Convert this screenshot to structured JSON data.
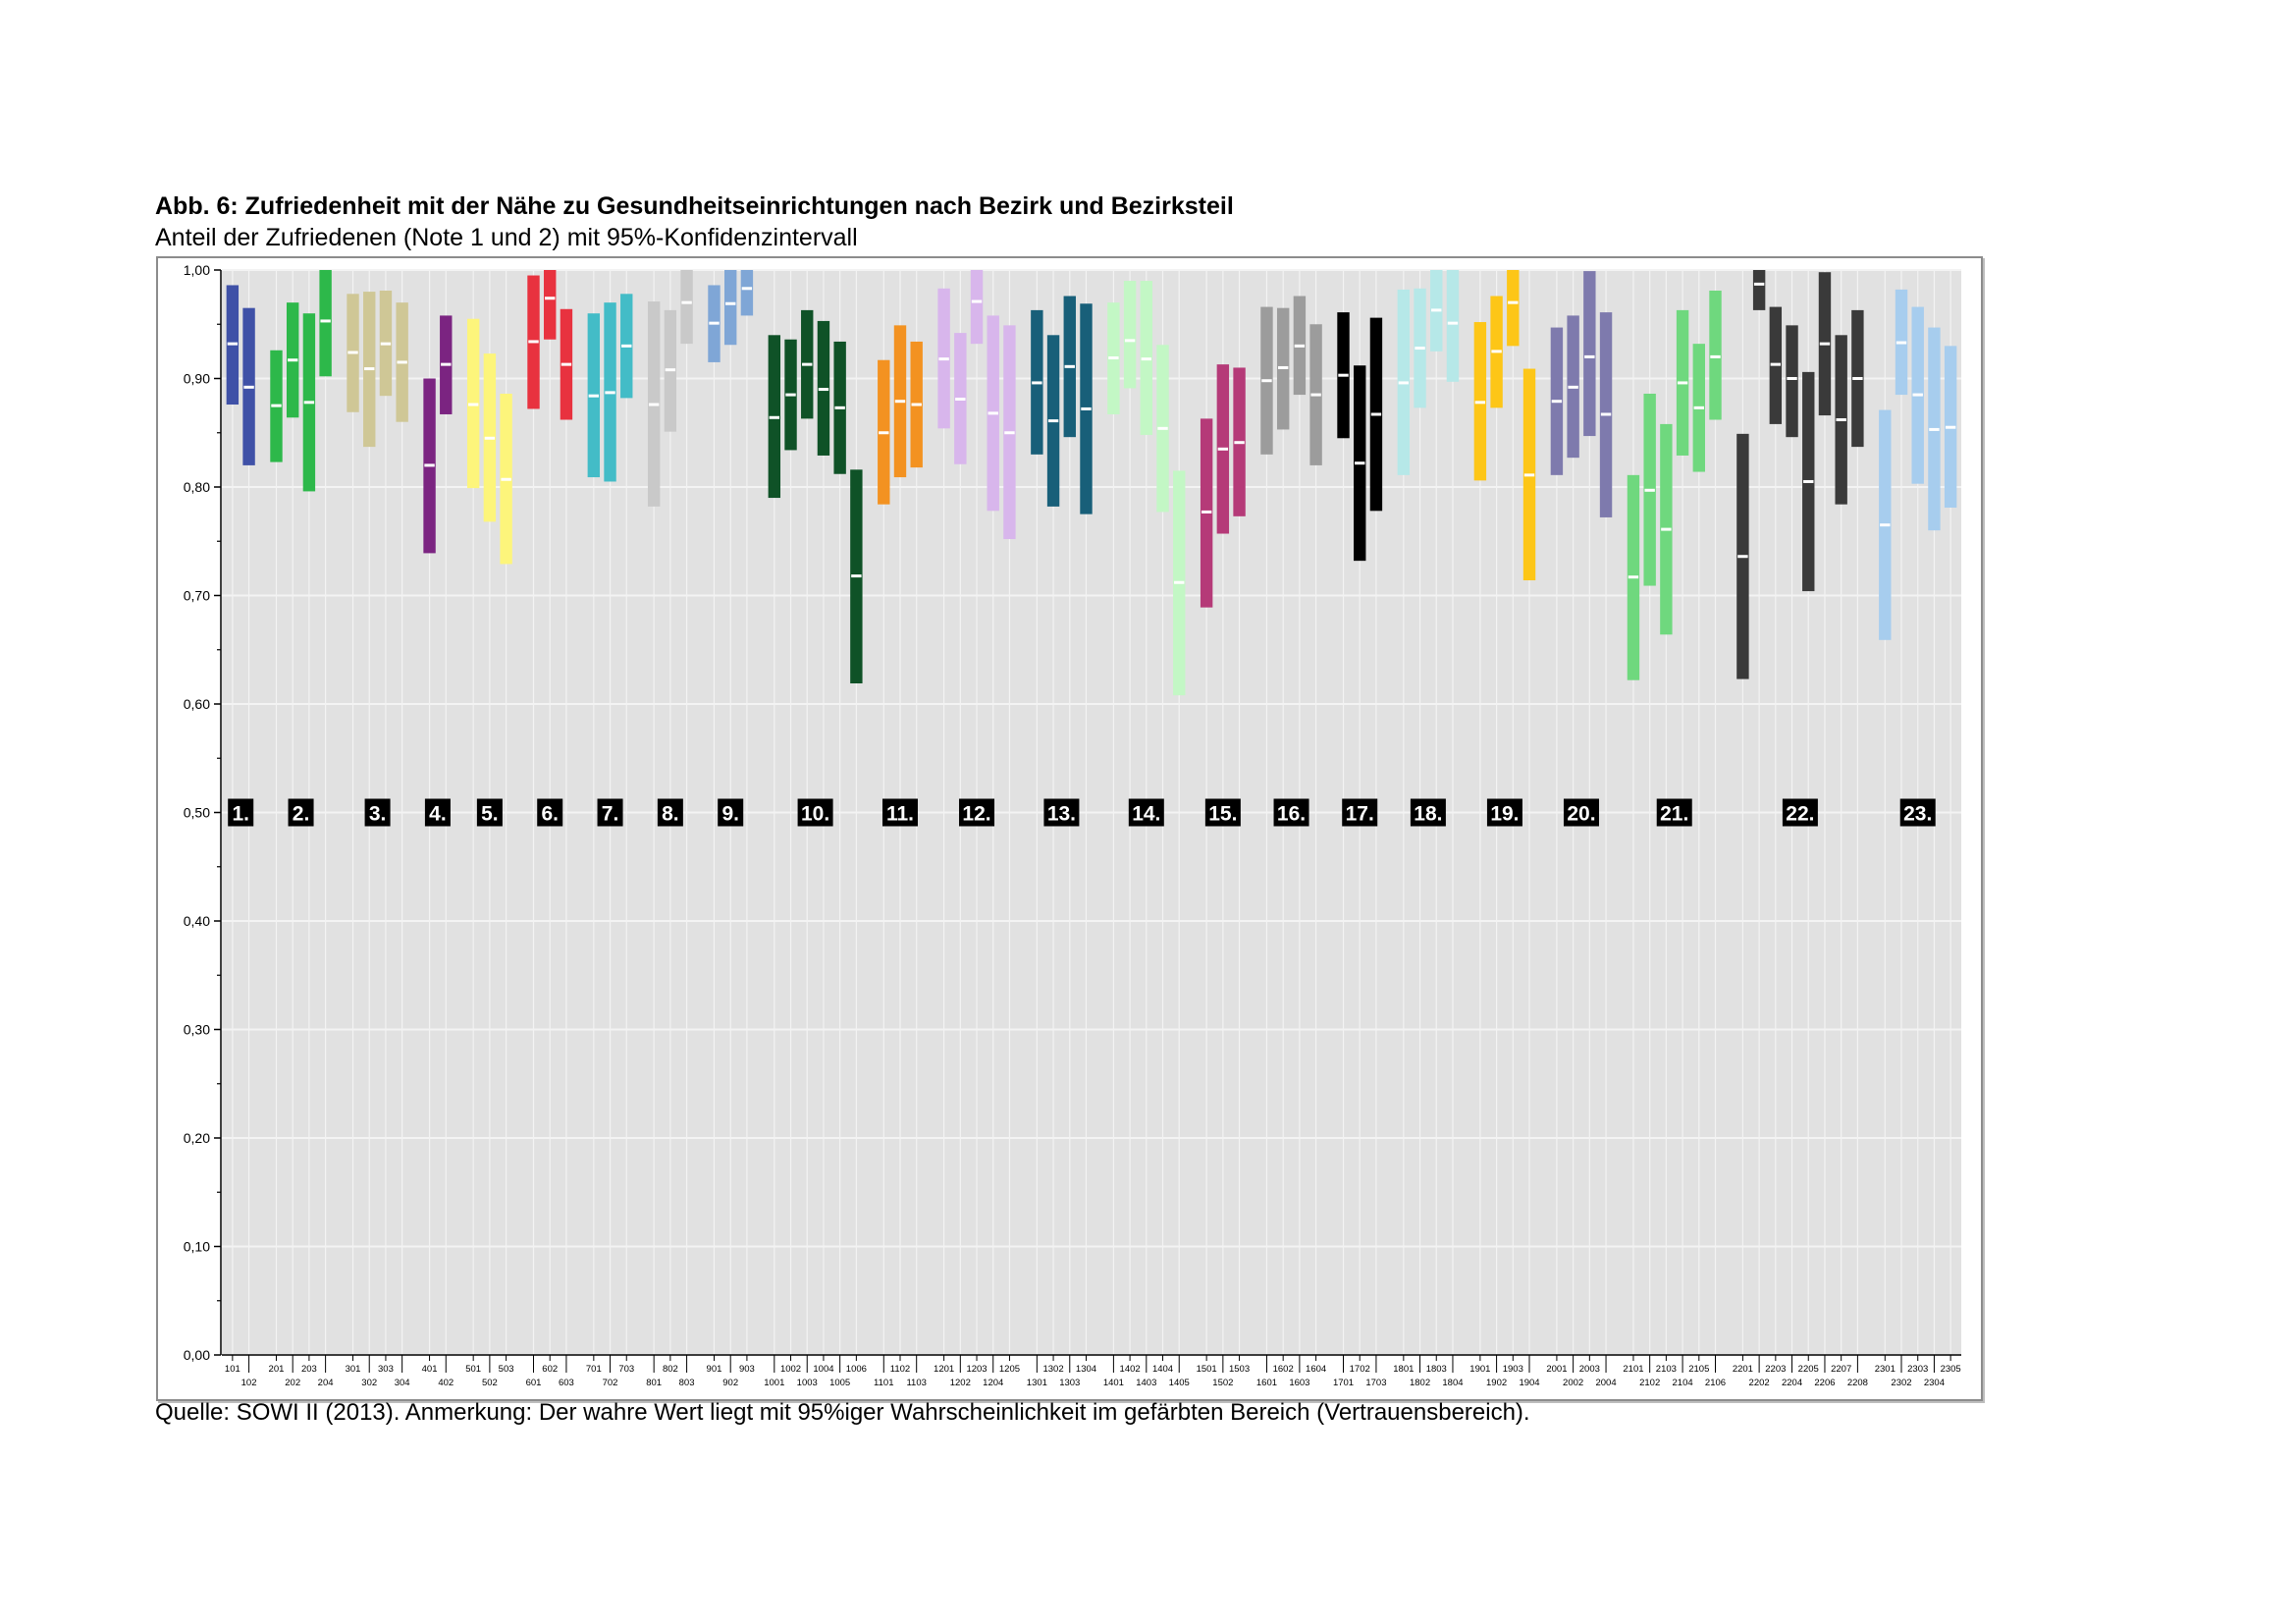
{
  "header": {
    "title": "Abb. 6: Zufriedenheit mit der Nähe zu Gesundheitseinrichtungen nach Bezirk und Bezirksteil",
    "subtitle": "Anteil der Zufriedenen (Note 1 und 2) mit 95%-Konfidenzintervall"
  },
  "footer": {
    "source": "Quelle: SOWI II (2013). Anmerkung: Der wahre Wert liegt mit 95%iger Wahrscheinlichkeit im gefärbten Bereich (Vertrauensbereich)."
  },
  "chart_data": {
    "type": "range-bar",
    "ylim": [
      0,
      1
    ],
    "grid": true,
    "y_ticks": [
      "0,00",
      "0,10",
      "0,20",
      "0,30",
      "0,40",
      "0,50",
      "0,60",
      "0,70",
      "0,80",
      "0,90",
      "1,00"
    ],
    "x_labels": [
      "101",
      "102",
      "201",
      "202",
      "203",
      "204",
      "301",
      "302",
      "303",
      "304",
      "401",
      "402",
      "501",
      "502",
      "503",
      "601",
      "602",
      "603",
      "701",
      "702",
      "703",
      "801",
      "802",
      "803",
      "901",
      "902",
      "903",
      "1001",
      "1002",
      "1003",
      "1004",
      "1005",
      "1006",
      "1101",
      "1102",
      "1103",
      "1201",
      "1202",
      "1203",
      "1204",
      "1205",
      "1301",
      "1302",
      "1303",
      "1304",
      "1401",
      "1402",
      "1403",
      "1404",
      "1405",
      "1501",
      "1502",
      "1503",
      "1601",
      "1602",
      "1603",
      "1604",
      "1701",
      "1702",
      "1703",
      "1801",
      "1802",
      "1803",
      "1804",
      "1901",
      "1902",
      "1903",
      "1904",
      "2001",
      "2002",
      "2003",
      "2004",
      "2101",
      "2102",
      "2103",
      "2104",
      "2105",
      "2106",
      "2201",
      "2202",
      "2203",
      "2204",
      "2205",
      "2206",
      "2207",
      "2208",
      "2301",
      "2302",
      "2303",
      "2304",
      "2305"
    ],
    "districts": [
      {
        "label": "1.",
        "color": "#3f51a7",
        "sub": [
          {
            "id": "101",
            "low": 0.876,
            "mid": 0.932,
            "high": 0.986
          },
          {
            "id": "102",
            "low": 0.82,
            "mid": 0.892,
            "high": 0.965
          }
        ]
      },
      {
        "label": "2.",
        "color": "#2db84a",
        "sub": [
          {
            "id": "201",
            "low": 0.823,
            "mid": 0.875,
            "high": 0.926
          },
          {
            "id": "202",
            "low": 0.864,
            "mid": 0.917,
            "high": 0.97
          },
          {
            "id": "203",
            "low": 0.796,
            "mid": 0.878,
            "high": 0.96
          },
          {
            "id": "204",
            "low": 0.902,
            "mid": 0.953,
            "high": 1.0
          }
        ]
      },
      {
        "label": "3.",
        "color": "#cfc796",
        "sub": [
          {
            "id": "301",
            "low": 0.869,
            "mid": 0.924,
            "high": 0.978
          },
          {
            "id": "302",
            "low": 0.837,
            "mid": 0.909,
            "high": 0.98
          },
          {
            "id": "303",
            "low": 0.884,
            "mid": 0.932,
            "high": 0.981
          },
          {
            "id": "304",
            "low": 0.86,
            "mid": 0.915,
            "high": 0.97
          }
        ]
      },
      {
        "label": "4.",
        "color": "#7b2481",
        "sub": [
          {
            "id": "401",
            "low": 0.739,
            "mid": 0.82,
            "high": 0.9
          },
          {
            "id": "402",
            "low": 0.867,
            "mid": 0.913,
            "high": 0.958
          }
        ]
      },
      {
        "label": "5.",
        "color": "#fdf57b",
        "sub": [
          {
            "id": "501",
            "low": 0.799,
            "mid": 0.876,
            "high": 0.955
          },
          {
            "id": "502",
            "low": 0.768,
            "mid": 0.845,
            "high": 0.923
          },
          {
            "id": "503",
            "low": 0.729,
            "mid": 0.807,
            "high": 0.886
          }
        ]
      },
      {
        "label": "6.",
        "color": "#e8323f",
        "sub": [
          {
            "id": "601",
            "low": 0.872,
            "mid": 0.934,
            "high": 0.995
          },
          {
            "id": "602",
            "low": 0.936,
            "mid": 0.974,
            "high": 1.0
          },
          {
            "id": "603",
            "low": 0.862,
            "mid": 0.913,
            "high": 0.964
          }
        ]
      },
      {
        "label": "7.",
        "color": "#43bcc7",
        "sub": [
          {
            "id": "701",
            "low": 0.809,
            "mid": 0.884,
            "high": 0.96
          },
          {
            "id": "702",
            "low": 0.805,
            "mid": 0.887,
            "high": 0.97
          },
          {
            "id": "703",
            "low": 0.882,
            "mid": 0.93,
            "high": 0.978
          }
        ]
      },
      {
        "label": "8.",
        "color": "#c9c9c9",
        "sub": [
          {
            "id": "801",
            "low": 0.782,
            "mid": 0.876,
            "high": 0.971
          },
          {
            "id": "802",
            "low": 0.851,
            "mid": 0.908,
            "high": 0.963
          },
          {
            "id": "803",
            "low": 0.932,
            "mid": 0.97,
            "high": 1.0
          }
        ]
      },
      {
        "label": "9.",
        "color": "#7fa6d6",
        "sub": [
          {
            "id": "901",
            "low": 0.915,
            "mid": 0.951,
            "high": 0.986
          },
          {
            "id": "902",
            "low": 0.931,
            "mid": 0.969,
            "high": 1.0
          },
          {
            "id": "903",
            "low": 0.958,
            "mid": 0.983,
            "high": 1.0
          }
        ]
      },
      {
        "label": "10.",
        "color": "#0f5227",
        "sub": [
          {
            "id": "1001",
            "low": 0.79,
            "mid": 0.864,
            "high": 0.94
          },
          {
            "id": "1002",
            "low": 0.834,
            "mid": 0.885,
            "high": 0.936
          },
          {
            "id": "1003",
            "low": 0.863,
            "mid": 0.913,
            "high": 0.963
          },
          {
            "id": "1004",
            "low": 0.829,
            "mid": 0.89,
            "high": 0.953
          },
          {
            "id": "1005",
            "low": 0.812,
            "mid": 0.873,
            "high": 0.934
          },
          {
            "id": "1006",
            "low": 0.619,
            "mid": 0.718,
            "high": 0.816
          }
        ]
      },
      {
        "label": "11.",
        "color": "#f39221",
        "sub": [
          {
            "id": "1101",
            "low": 0.784,
            "mid": 0.85,
            "high": 0.917
          },
          {
            "id": "1102",
            "low": 0.809,
            "mid": 0.879,
            "high": 0.949
          },
          {
            "id": "1103",
            "low": 0.818,
            "mid": 0.876,
            "high": 0.934
          }
        ]
      },
      {
        "label": "12.",
        "color": "#d8b6ec",
        "sub": [
          {
            "id": "1201",
            "low": 0.854,
            "mid": 0.918,
            "high": 0.983
          },
          {
            "id": "1202",
            "low": 0.821,
            "mid": 0.881,
            "high": 0.942
          },
          {
            "id": "1203",
            "low": 0.932,
            "mid": 0.971,
            "high": 1.0
          },
          {
            "id": "1204",
            "low": 0.778,
            "mid": 0.868,
            "high": 0.958
          },
          {
            "id": "1205",
            "low": 0.752,
            "mid": 0.85,
            "high": 0.949
          }
        ]
      },
      {
        "label": "13.",
        "color": "#185f79",
        "sub": [
          {
            "id": "1301",
            "low": 0.83,
            "mid": 0.896,
            "high": 0.963
          },
          {
            "id": "1302",
            "low": 0.782,
            "mid": 0.861,
            "high": 0.94
          },
          {
            "id": "1303",
            "low": 0.846,
            "mid": 0.911,
            "high": 0.976
          },
          {
            "id": "1304",
            "low": 0.775,
            "mid": 0.872,
            "high": 0.969
          }
        ]
      },
      {
        "label": "14.",
        "color": "#c3f7c5",
        "sub": [
          {
            "id": "1401",
            "low": 0.867,
            "mid": 0.919,
            "high": 0.97
          },
          {
            "id": "1402",
            "low": 0.891,
            "mid": 0.935,
            "high": 0.99
          },
          {
            "id": "1403",
            "low": 0.848,
            "mid": 0.918,
            "high": 0.99
          },
          {
            "id": "1404",
            "low": 0.777,
            "mid": 0.854,
            "high": 0.931
          },
          {
            "id": "1405",
            "low": 0.608,
            "mid": 0.712,
            "high": 0.815
          }
        ]
      },
      {
        "label": "15.",
        "color": "#b53a78",
        "sub": [
          {
            "id": "1501",
            "low": 0.689,
            "mid": 0.777,
            "high": 0.863
          },
          {
            "id": "1502",
            "low": 0.757,
            "mid": 0.835,
            "high": 0.913
          },
          {
            "id": "1503",
            "low": 0.773,
            "mid": 0.841,
            "high": 0.91
          }
        ]
      },
      {
        "label": "16.",
        "color": "#9c9c9c",
        "sub": [
          {
            "id": "1601",
            "low": 0.83,
            "mid": 0.898,
            "high": 0.966
          },
          {
            "id": "1602",
            "low": 0.853,
            "mid": 0.91,
            "high": 0.965
          },
          {
            "id": "1603",
            "low": 0.885,
            "mid": 0.93,
            "high": 0.976
          },
          {
            "id": "1604",
            "low": 0.82,
            "mid": 0.885,
            "high": 0.95
          }
        ]
      },
      {
        "label": "17.",
        "color": "#000000",
        "sub": [
          {
            "id": "1701",
            "low": 0.845,
            "mid": 0.903,
            "high": 0.961
          },
          {
            "id": "1702",
            "low": 0.732,
            "mid": 0.822,
            "high": 0.912
          },
          {
            "id": "1703",
            "low": 0.778,
            "mid": 0.867,
            "high": 0.956
          }
        ]
      },
      {
        "label": "18.",
        "color": "#b6e8e8",
        "sub": [
          {
            "id": "1801",
            "low": 0.811,
            "mid": 0.896,
            "high": 0.982
          },
          {
            "id": "1802",
            "low": 0.873,
            "mid": 0.928,
            "high": 0.983
          },
          {
            "id": "1803",
            "low": 0.925,
            "mid": 0.963,
            "high": 1.0
          },
          {
            "id": "1804",
            "low": 0.897,
            "mid": 0.951,
            "high": 1.0
          }
        ]
      },
      {
        "label": "19.",
        "color": "#fdc617",
        "sub": [
          {
            "id": "1901",
            "low": 0.806,
            "mid": 0.878,
            "high": 0.952
          },
          {
            "id": "1902",
            "low": 0.873,
            "mid": 0.925,
            "high": 0.976
          },
          {
            "id": "1903",
            "low": 0.93,
            "mid": 0.97,
            "high": 1.0
          },
          {
            "id": "1904",
            "low": 0.714,
            "mid": 0.811,
            "high": 0.909
          }
        ]
      },
      {
        "label": "20.",
        "color": "#7e7aad",
        "sub": [
          {
            "id": "2001",
            "low": 0.811,
            "mid": 0.879,
            "high": 0.947
          },
          {
            "id": "2002",
            "low": 0.827,
            "mid": 0.892,
            "high": 0.958
          },
          {
            "id": "2003",
            "low": 0.847,
            "mid": 0.92,
            "high": 0.999
          },
          {
            "id": "2004",
            "low": 0.772,
            "mid": 0.867,
            "high": 0.961
          }
        ]
      },
      {
        "label": "21.",
        "color": "#6fd87e",
        "sub": [
          {
            "id": "2101",
            "low": 0.622,
            "mid": 0.717,
            "high": 0.811
          },
          {
            "id": "2102",
            "low": 0.709,
            "mid": 0.797,
            "high": 0.886
          },
          {
            "id": "2103",
            "low": 0.664,
            "mid": 0.761,
            "high": 0.858
          },
          {
            "id": "2104",
            "low": 0.829,
            "mid": 0.896,
            "high": 0.963
          },
          {
            "id": "2105",
            "low": 0.814,
            "mid": 0.873,
            "high": 0.932
          },
          {
            "id": "2106",
            "low": 0.862,
            "mid": 0.92,
            "high": 0.981
          }
        ]
      },
      {
        "label": "22.",
        "color": "#3a3a3a",
        "sub": [
          {
            "id": "2201",
            "low": 0.623,
            "mid": 0.736,
            "high": 0.849
          },
          {
            "id": "2202",
            "low": 0.963,
            "mid": 0.987,
            "high": 1.0
          },
          {
            "id": "2203",
            "low": 0.858,
            "mid": 0.913,
            "high": 0.966
          },
          {
            "id": "2204",
            "low": 0.846,
            "mid": 0.9,
            "high": 0.949
          },
          {
            "id": "2205",
            "low": 0.704,
            "mid": 0.805,
            "high": 0.906
          },
          {
            "id": "2206",
            "low": 0.866,
            "mid": 0.932,
            "high": 0.998
          },
          {
            "id": "2207",
            "low": 0.784,
            "mid": 0.862,
            "high": 0.94
          },
          {
            "id": "2208",
            "low": 0.837,
            "mid": 0.9,
            "high": 0.963
          }
        ]
      },
      {
        "label": "23.",
        "color": "#a7cdee",
        "sub": [
          {
            "id": "2301",
            "low": 0.659,
            "mid": 0.765,
            "high": 0.871
          },
          {
            "id": "2302",
            "low": 0.885,
            "mid": 0.933,
            "high": 0.982
          },
          {
            "id": "2303",
            "low": 0.803,
            "mid": 0.885,
            "high": 0.966
          },
          {
            "id": "2304",
            "low": 0.76,
            "mid": 0.853,
            "high": 0.947
          },
          {
            "id": "2305",
            "low": 0.781,
            "mid": 0.855,
            "high": 0.93
          }
        ]
      }
    ]
  }
}
